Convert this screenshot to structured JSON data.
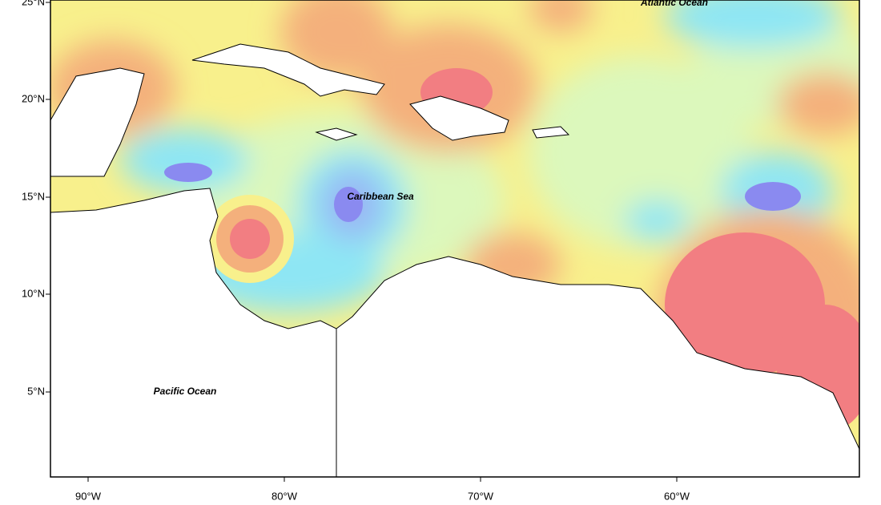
{
  "map": {
    "latitude_labels": [
      "25°N",
      "20°N",
      "15°N",
      "10°N",
      "5°N"
    ],
    "longitude_labels": [
      "90°W",
      "80°W",
      "70°W",
      "60°W"
    ],
    "region_labels": [
      "Atlantic Ocean",
      "Caribbean Sea",
      "Pacific Ocean"
    ]
  }
}
